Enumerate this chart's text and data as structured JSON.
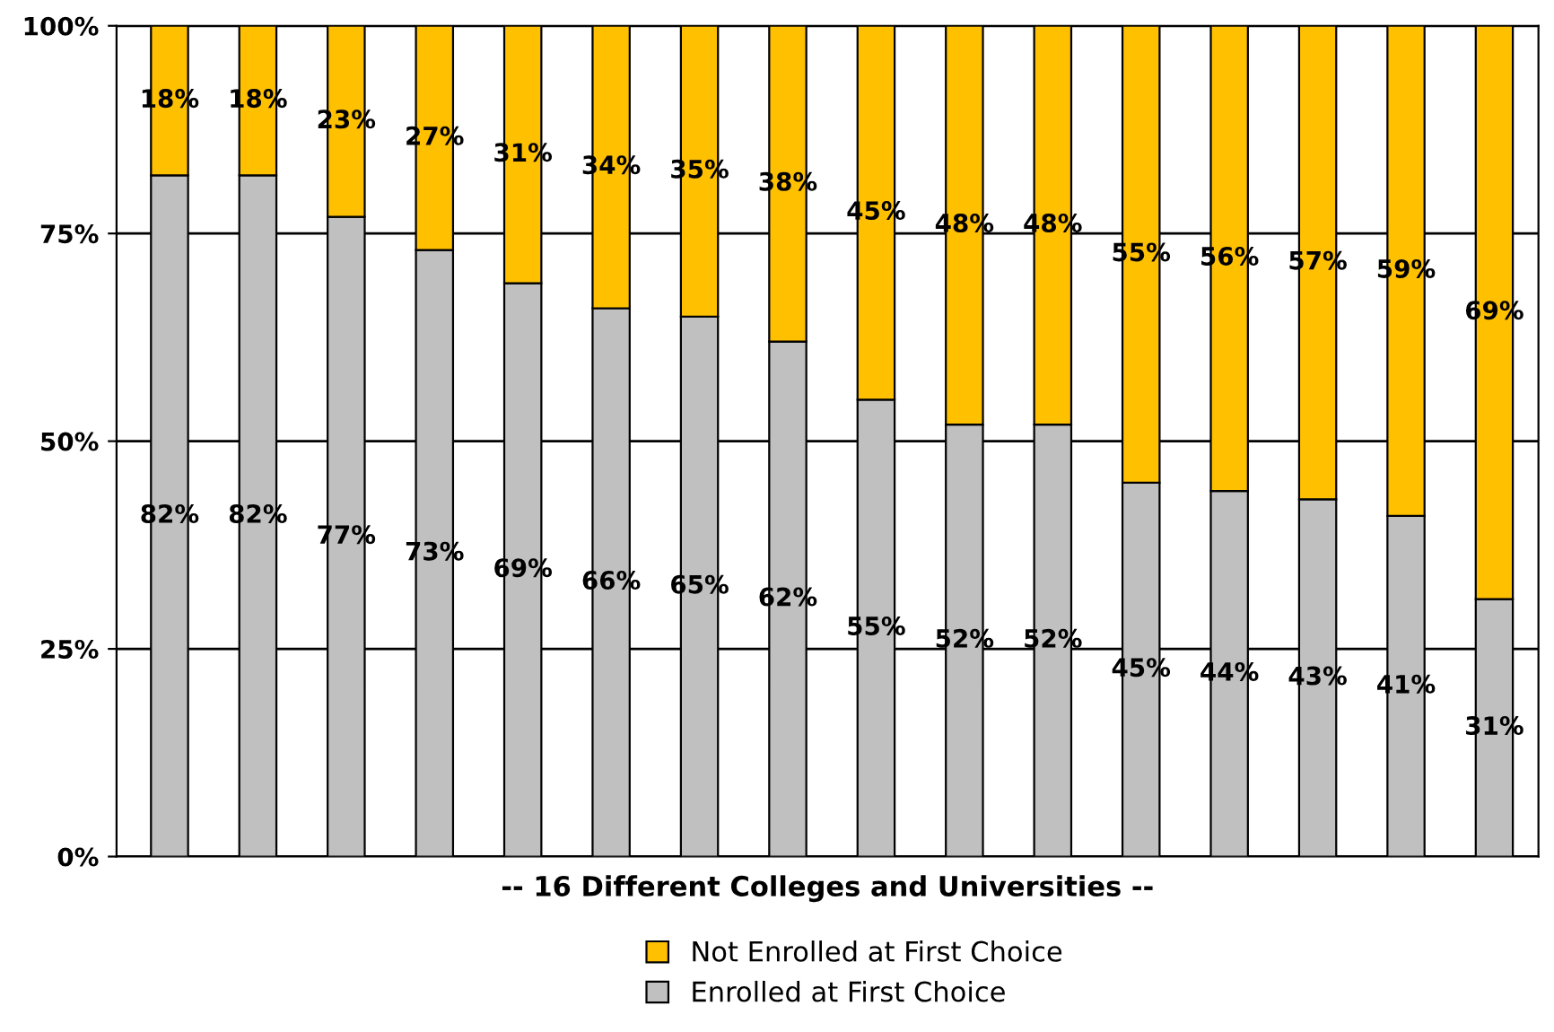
{
  "chart_data": {
    "type": "bar",
    "stacked": true,
    "xlabel": "-- 16 Different Colleges and Universities --",
    "categories": [
      null,
      null,
      null,
      null,
      null,
      null,
      null,
      null,
      null,
      null,
      null,
      null,
      null,
      null,
      null,
      null
    ],
    "series": [
      {
        "name": "Enrolled at First Choice",
        "color": "#c0c0c0",
        "values": [
          82,
          82,
          77,
          73,
          69,
          66,
          65,
          62,
          55,
          52,
          52,
          45,
          44,
          43,
          41,
          31
        ],
        "value_labels": [
          "82%",
          "82%",
          "77%",
          "73%",
          "69%",
          "66%",
          "65%",
          "62%",
          "55%",
          "52%",
          "52%",
          "45%",
          "44%",
          "43%",
          "41%",
          "31%"
        ]
      },
      {
        "name": "Not Enrolled at First Choice",
        "color": "#ffc000",
        "values": [
          18,
          18,
          23,
          27,
          31,
          34,
          35,
          38,
          45,
          48,
          48,
          55,
          56,
          57,
          59,
          69
        ],
        "value_labels": [
          "18%",
          "18%",
          "23%",
          "27%",
          "31%",
          "34%",
          "35%",
          "38%",
          "45%",
          "48%",
          "48%",
          "55%",
          "56%",
          "57%",
          "59%",
          "69%"
        ]
      }
    ],
    "ylim": [
      0,
      100
    ],
    "yticks": [
      {
        "value": 0,
        "label": "0%"
      },
      {
        "value": 25,
        "label": "25%"
      },
      {
        "value": 50,
        "label": "50%"
      },
      {
        "value": 75,
        "label": "75%"
      },
      {
        "value": 100,
        "label": "100%"
      }
    ],
    "grid": "y",
    "legend": "bottom"
  }
}
